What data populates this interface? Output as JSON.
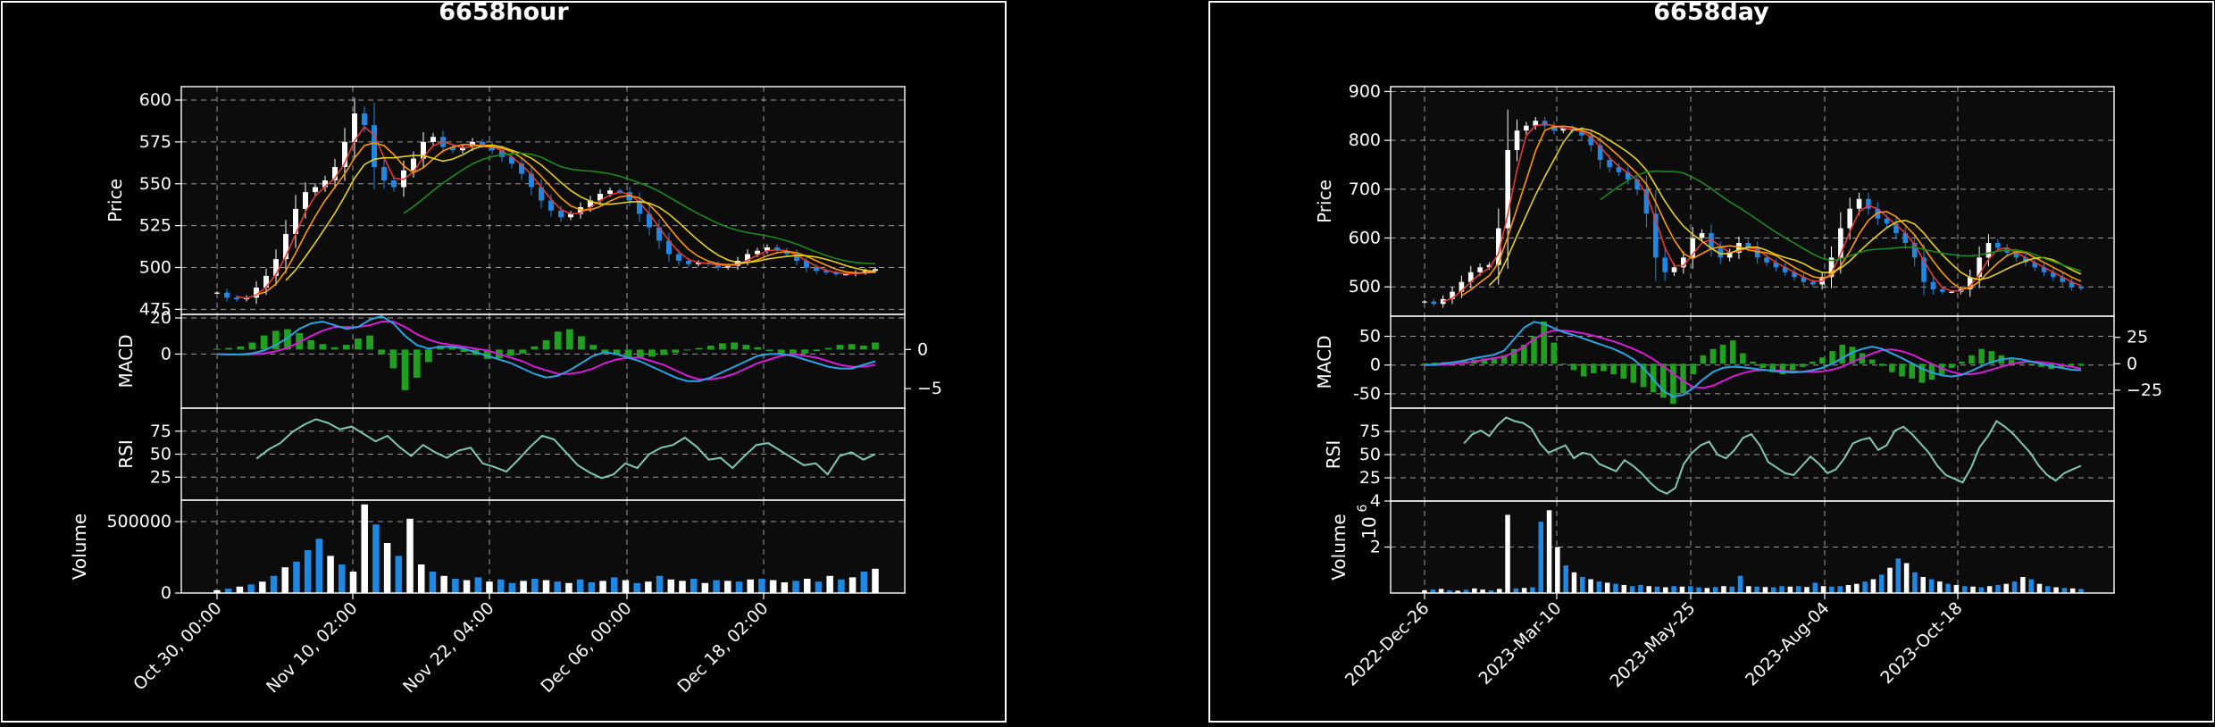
{
  "colors": {
    "background": "#000000",
    "plot_bg": "#0c0c0c",
    "up_candle": "#ffffff",
    "down_candle": "#1e88e5",
    "ma_red": "#e53935",
    "ma_orange": "#ff9800",
    "ma_yellow": "#e6d21c",
    "ma_green": "#1b8a1b",
    "macd_line": "#2aa3e0",
    "signal_line": "#d81bd8",
    "histogram": "#1fa01f",
    "rsi_line": "#7fc8b4",
    "grid": "#b3b3b3",
    "text": "#ffffff"
  },
  "chart_data": [
    {
      "type": "candlestick",
      "title": "6658hour",
      "timeframe": "hour",
      "x_ticks": [
        "Oct 30, 00:00",
        "Nov 10, 02:00",
        "Nov 22, 04:00",
        "Dec 06, 00:00",
        "Dec 18, 02:00"
      ],
      "price": {
        "ylabel": "Price",
        "ylim": [
          472,
          608
        ],
        "yticks": [
          475,
          500,
          525,
          550,
          575,
          600
        ],
        "close": [
          485,
          482,
          481,
          482,
          488,
          495,
          505,
          520,
          535,
          545,
          548,
          552,
          560,
          575,
          592,
          585,
          560,
          552,
          548,
          558,
          565,
          575,
          578,
          572,
          570,
          572,
          575,
          573,
          570,
          566,
          562,
          556,
          548,
          540,
          534,
          530,
          532,
          536,
          540,
          544,
          546,
          545,
          540,
          532,
          524,
          516,
          508,
          504,
          502,
          503,
          502,
          500,
          501,
          504,
          508,
          510,
          512,
          510,
          508,
          504,
          500,
          498,
          497,
          496,
          496,
          497,
          498,
          499
        ]
      },
      "macd": {
        "ylabel": "MACD",
        "ylim": [
          -30,
          22
        ],
        "yticks": [
          0,
          20
        ],
        "right_ylim": [
          -7.5,
          4.5
        ],
        "right_yticks": [
          -5,
          0
        ],
        "macd": [
          0,
          -0.3,
          -0.2,
          0.4,
          2,
          5,
          9,
          14,
          17,
          18,
          16,
          14,
          15,
          19,
          21,
          17,
          10,
          5,
          3,
          4,
          4,
          3,
          1,
          -1,
          -3,
          -5,
          -8,
          -11,
          -13,
          -12,
          -9,
          -5,
          -1,
          1,
          0,
          -2,
          -4,
          -7,
          -10,
          -13,
          -15,
          -15,
          -13,
          -10,
          -7,
          -4,
          -1,
          0,
          0,
          -1,
          -3,
          -5,
          -7,
          -8,
          -8,
          -6,
          -4
        ],
        "signal": [
          0,
          -0.2,
          -0.3,
          -0.2,
          0.4,
          1.5,
          3.5,
          6.5,
          10,
          13,
          15,
          15,
          15,
          16,
          18,
          18,
          15,
          11,
          8,
          6,
          5,
          4,
          3,
          2,
          0,
          -2,
          -4,
          -7,
          -9,
          -11,
          -11,
          -10,
          -8,
          -5,
          -3,
          -2,
          -2,
          -4,
          -6,
          -9,
          -12,
          -14,
          -14,
          -13,
          -11,
          -8,
          -5,
          -3,
          -1,
          0,
          -1,
          -2,
          -4,
          -6,
          -7,
          -7,
          -6
        ],
        "histogram": [
          0.1,
          0.2,
          0.4,
          0.9,
          1.8,
          2.4,
          2.6,
          2.1,
          1.2,
          0.7,
          0.3,
          0.6,
          1.4,
          1.8,
          -0.6,
          -2.4,
          -5.2,
          -3.6,
          -1.6,
          0.5,
          0.3,
          -0.3,
          -0.7,
          -1.2,
          -1.1,
          -0.8,
          -0.5,
          0.4,
          1.2,
          2.3,
          2.6,
          1.7,
          0.6,
          -0.4,
          -0.7,
          -1.0,
          -1.1,
          -0.9,
          -0.7,
          -0.4,
          -0.1,
          0.2,
          0.5,
          0.8,
          0.9,
          0.6,
          0.3,
          -0.2,
          -0.5,
          -0.6,
          -0.5,
          -0.2,
          0.2,
          0.6,
          0.7,
          0.5,
          0.9
        ]
      },
      "rsi": {
        "ylabel": "RSI",
        "ylim": [
          0,
          100
        ],
        "yticks": [
          25,
          50,
          75
        ],
        "values": [
          45,
          55,
          62,
          74,
          82,
          88,
          84,
          77,
          80,
          72,
          64,
          70,
          58,
          48,
          60,
          52,
          46,
          54,
          57,
          40,
          36,
          31,
          44,
          58,
          70,
          66,
          52,
          38,
          30,
          24,
          28,
          40,
          35,
          50,
          57,
          60,
          68,
          58,
          44,
          46,
          35,
          48,
          60,
          62,
          54,
          46,
          38,
          40,
          28,
          48,
          52,
          44,
          50
        ]
      },
      "volume": {
        "ylabel": "Volume",
        "yticks": [
          0,
          500000
        ],
        "ylim": [
          0,
          650000
        ],
        "values": [
          20000,
          30000,
          45000,
          60000,
          80000,
          120000,
          180000,
          220000,
          300000,
          380000,
          260000,
          200000,
          150000,
          620000,
          480000,
          350000,
          260000,
          520000,
          200000,
          150000,
          120000,
          100000,
          90000,
          110000,
          80000,
          95000,
          70000,
          85000,
          100000,
          90000,
          80000,
          70000,
          95000,
          75000,
          85000,
          110000,
          90000,
          70000,
          80000,
          120000,
          95000,
          85000,
          100000,
          70000,
          90000,
          85000,
          80000,
          95000,
          100000,
          90000,
          75000,
          85000,
          100000,
          80000,
          120000,
          95000,
          110000,
          150000,
          170000
        ],
        "up": [
          1,
          0,
          1,
          0,
          1,
          0,
          1,
          0,
          0,
          0,
          1,
          0,
          1,
          1,
          0,
          1,
          0,
          1,
          1,
          0,
          1,
          0,
          1,
          0,
          1,
          0,
          0,
          1,
          0,
          1,
          0,
          1,
          0,
          0,
          1,
          0,
          1,
          0,
          1,
          0,
          1,
          1,
          0,
          1,
          0,
          1,
          0,
          1,
          0,
          1,
          1,
          0,
          1,
          0,
          1,
          0,
          1,
          0,
          1
        ]
      }
    },
    {
      "type": "candlestick",
      "title": "6658day",
      "timeframe": "day",
      "x_ticks": [
        "2022-Dec-26",
        "2023-Mar-10",
        "2023-May-25",
        "2023-Aug-04",
        "2023-Oct-18"
      ],
      "price": {
        "ylabel": "Price",
        "ylim": [
          440,
          910
        ],
        "yticks": [
          500,
          600,
          700,
          800,
          900
        ],
        "close": [
          470,
          465,
          475,
          490,
          510,
          530,
          540,
          545,
          620,
          780,
          820,
          830,
          840,
          830,
          820,
          825,
          820,
          810,
          790,
          760,
          745,
          735,
          720,
          700,
          650,
          560,
          530,
          540,
          560,
          600,
          610,
          580,
          560,
          570,
          590,
          580,
          560,
          550,
          540,
          530,
          520,
          510,
          505,
          520,
          560,
          620,
          660,
          680,
          660,
          640,
          630,
          610,
          590,
          560,
          510,
          495,
          490,
          490,
          495,
          520,
          560,
          590,
          580,
          570,
          560,
          550,
          540,
          530,
          520,
          510,
          500,
          497
        ]
      },
      "macd": {
        "ylabel": "MACD",
        "ylim": [
          -75,
          85
        ],
        "yticks": [
          -50,
          0,
          50
        ],
        "right_ylim": [
          -42,
          45
        ],
        "right_yticks": [
          -25,
          0,
          25
        ],
        "macd": [
          0,
          1,
          3,
          5,
          8,
          12,
          15,
          18,
          25,
          45,
          65,
          75,
          72,
          64,
          57,
          52,
          46,
          40,
          34,
          28,
          20,
          10,
          -5,
          -25,
          -45,
          -55,
          -52,
          -40,
          -25,
          -12,
          -5,
          -3,
          -4,
          -6,
          -8,
          -10,
          -12,
          -13,
          -12,
          -9,
          -5,
          2,
          12,
          22,
          28,
          32,
          28,
          20,
          12,
          3,
          -6,
          -13,
          -18,
          -20,
          -17,
          -10,
          -2,
          5,
          10,
          12,
          10,
          6,
          2,
          -2,
          -5,
          -8,
          -9
        ],
        "signal": [
          0,
          0,
          1,
          2,
          4,
          6,
          9,
          12,
          15,
          22,
          32,
          45,
          55,
          60,
          60,
          58,
          55,
          51,
          46,
          41,
          35,
          28,
          20,
          10,
          -2,
          -15,
          -28,
          -38,
          -40,
          -36,
          -28,
          -20,
          -14,
          -10,
          -9,
          -9,
          -10,
          -11,
          -12,
          -12,
          -11,
          -8,
          -3,
          5,
          13,
          20,
          26,
          27,
          24,
          18,
          10,
          2,
          -6,
          -12,
          -16,
          -16,
          -13,
          -8,
          -3,
          2,
          5,
          6,
          5,
          3,
          0,
          -3,
          -6
        ],
        "histogram": [
          0.5,
          1,
          1.5,
          2,
          3,
          4,
          5,
          6,
          8,
          14,
          18,
          26,
          40,
          20,
          0,
          -6,
          -12,
          -9,
          -7,
          -10,
          -14,
          -18,
          -22,
          -27,
          -32,
          -38,
          -28,
          -10,
          8,
          14,
          18,
          22,
          10,
          2,
          -4,
          -8,
          -10,
          -6,
          -3,
          2,
          6,
          12,
          18,
          16,
          10,
          4,
          -2,
          -8,
          -12,
          -14,
          -18,
          -15,
          -10,
          -4,
          2,
          8,
          14,
          12,
          8,
          4,
          2,
          -1,
          -3,
          -5,
          -4,
          -3,
          -2
        ]
      },
      "rsi": {
        "ylabel": "RSI",
        "ylim": [
          0,
          100
        ],
        "yticks": [
          25,
          50,
          75
        ],
        "values": [
          62,
          72,
          76,
          70,
          82,
          90,
          86,
          84,
          78,
          62,
          52,
          56,
          60,
          46,
          52,
          50,
          40,
          36,
          32,
          44,
          38,
          30,
          20,
          12,
          8,
          14,
          40,
          52,
          60,
          64,
          50,
          46,
          55,
          68,
          72,
          60,
          42,
          36,
          30,
          28,
          38,
          48,
          40,
          30,
          34,
          46,
          62,
          66,
          68,
          55,
          60,
          76,
          80,
          72,
          62,
          52,
          38,
          28,
          24,
          20,
          36,
          58,
          70,
          86,
          80,
          72,
          62,
          52,
          38,
          28,
          22,
          30,
          34,
          38
        ]
      },
      "volume": {
        "ylabel": "Volume",
        "exponent_label": "10",
        "exponent": "6",
        "yticks": [
          2,
          4
        ],
        "ylim": [
          0,
          4
        ],
        "values": [
          0.12,
          0.15,
          0.18,
          0.12,
          0.1,
          0.14,
          0.2,
          0.15,
          0.12,
          0.18,
          3.4,
          0.2,
          0.22,
          0.25,
          3.1,
          3.6,
          2.0,
          1.2,
          0.9,
          0.7,
          0.6,
          0.5,
          0.45,
          0.4,
          0.35,
          0.3,
          0.35,
          0.3,
          0.28,
          0.25,
          0.3,
          0.28,
          0.3,
          0.25,
          0.22,
          0.26,
          0.3,
          0.28,
          0.75,
          0.3,
          0.28,
          0.26,
          0.25,
          0.3,
          0.28,
          0.3,
          0.26,
          0.45,
          0.3,
          0.28,
          0.3,
          0.35,
          0.4,
          0.5,
          0.6,
          0.8,
          1.1,
          1.5,
          1.3,
          0.9,
          0.7,
          0.6,
          0.5,
          0.4,
          0.35,
          0.3,
          0.28,
          0.25,
          0.3,
          0.35,
          0.4,
          0.5,
          0.7,
          0.6,
          0.4,
          0.3,
          0.25,
          0.22,
          0.2,
          0.18
        ],
        "up": [
          1,
          0,
          1,
          0,
          1,
          0,
          1,
          1,
          0,
          1,
          1,
          0,
          1,
          0,
          0,
          1,
          1,
          0,
          1,
          0,
          1,
          0,
          1,
          0,
          1,
          0,
          0,
          1,
          0,
          1,
          0,
          1,
          0,
          0,
          1,
          0,
          1,
          0,
          0,
          1,
          0,
          1,
          0,
          0,
          1,
          0,
          1,
          0,
          1,
          0,
          0,
          1,
          1,
          0,
          1,
          0,
          1,
          0,
          1,
          0,
          1,
          0,
          1,
          0,
          1,
          0,
          1,
          0,
          1,
          0,
          1,
          0,
          1,
          0,
          1,
          0,
          1,
          0,
          1,
          0
        ]
      }
    }
  ]
}
